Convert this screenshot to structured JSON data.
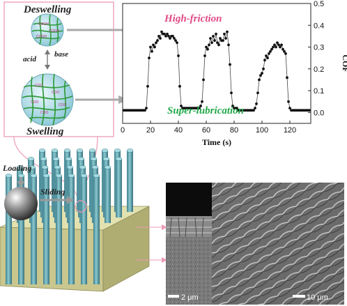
{
  "labels": {
    "deswelling": "Deswelling",
    "swelling": "Swelling",
    "acid": "acid",
    "base": "base",
    "coo": "COO",
    "cooh": "COOH",
    "loading": "Loading",
    "sliding": "Sliding",
    "high_friction": "High-friction",
    "super_lubrication": "Super-lubrication",
    "scale_left": "2 μm",
    "scale_right": "10 μm"
  },
  "colors": {
    "pink": "#e04a86",
    "green": "#23a84a",
    "pillar": "#5a9aa5",
    "substrate": "#c7c58e",
    "gel": "#9fd7e3"
  },
  "chart_data": {
    "type": "scatter",
    "xlabel": "Time (s)",
    "ylabel": "COF",
    "xlim": [
      0,
      135
    ],
    "ylim": [
      -0.05,
      0.5
    ],
    "xticks": [
      "0",
      "20",
      "40",
      "60",
      "80",
      "100",
      "120"
    ],
    "yticks": [
      "0.0",
      "0.1",
      "0.2",
      "0.3",
      "0.4",
      "0.5"
    ],
    "annotations": [
      "High-friction",
      "Super-lubrication"
    ],
    "x": [
      1,
      2,
      3,
      4,
      5,
      6,
      7,
      8,
      9,
      10,
      11,
      12,
      13,
      14,
      15,
      16,
      17,
      18,
      19,
      20,
      21,
      22,
      23,
      24,
      25,
      26,
      27,
      28,
      29,
      30,
      31,
      32,
      33,
      34,
      35,
      36,
      37,
      38,
      39,
      40,
      41,
      42,
      43,
      44,
      45,
      46,
      47,
      48,
      49,
      50,
      51,
      52,
      53,
      54,
      55,
      56,
      57,
      58,
      59,
      60,
      61,
      62,
      63,
      64,
      65,
      66,
      67,
      68,
      69,
      70,
      71,
      72,
      73,
      74,
      75,
      76,
      77,
      78,
      79,
      80,
      81,
      82,
      83,
      84,
      85,
      86,
      87,
      88,
      89,
      90,
      91,
      92,
      93,
      94,
      95,
      96,
      97,
      98,
      99,
      100,
      101,
      102,
      103,
      104,
      105,
      106,
      107,
      108,
      109,
      110,
      111,
      112,
      113,
      114,
      115,
      116,
      117,
      118,
      119,
      120,
      121,
      122,
      123,
      124,
      125,
      126,
      127,
      128,
      129,
      130,
      131,
      132,
      133,
      134
    ],
    "y": [
      0.01,
      0.01,
      0.01,
      0.01,
      0.01,
      0.01,
      0.01,
      0.01,
      0.01,
      0.01,
      0.01,
      0.01,
      0.01,
      0.01,
      0.01,
      0.01,
      0.02,
      0.12,
      0.25,
      0.3,
      0.28,
      0.31,
      0.3,
      0.32,
      0.33,
      0.35,
      0.34,
      0.37,
      0.36,
      0.36,
      0.35,
      0.36,
      0.35,
      0.34,
      0.35,
      0.35,
      0.34,
      0.33,
      0.32,
      0.26,
      0.12,
      0.03,
      0.02,
      0.02,
      0.02,
      0.02,
      0.02,
      0.02,
      0.02,
      0.02,
      0.02,
      0.02,
      0.02,
      0.02,
      0.02,
      0.03,
      0.05,
      0.15,
      0.26,
      0.3,
      0.29,
      0.31,
      0.34,
      0.32,
      0.35,
      0.33,
      0.36,
      0.32,
      0.31,
      0.34,
      0.33,
      0.33,
      0.36,
      0.34,
      0.37,
      0.31,
      0.22,
      0.09,
      0.03,
      0.02,
      0.02,
      0.02,
      0.01,
      0.01,
      0.01,
      0.01,
      0.01,
      0.01,
      0.01,
      0.01,
      0.01,
      0.01,
      0.01,
      0.01,
      0.02,
      0.04,
      0.09,
      0.15,
      0.17,
      0.18,
      0.2,
      0.24,
      0.26,
      0.25,
      0.27,
      0.28,
      0.29,
      0.3,
      0.31,
      0.3,
      0.32,
      0.31,
      0.3,
      0.31,
      0.29,
      0.28,
      0.27,
      0.16,
      0.05,
      0.02,
      0.01,
      0.01,
      0.01,
      0.01,
      0.01,
      0.01,
      0.01,
      0.01,
      0.01,
      0.01,
      0.01,
      0.01,
      0.01,
      0.01
    ]
  }
}
